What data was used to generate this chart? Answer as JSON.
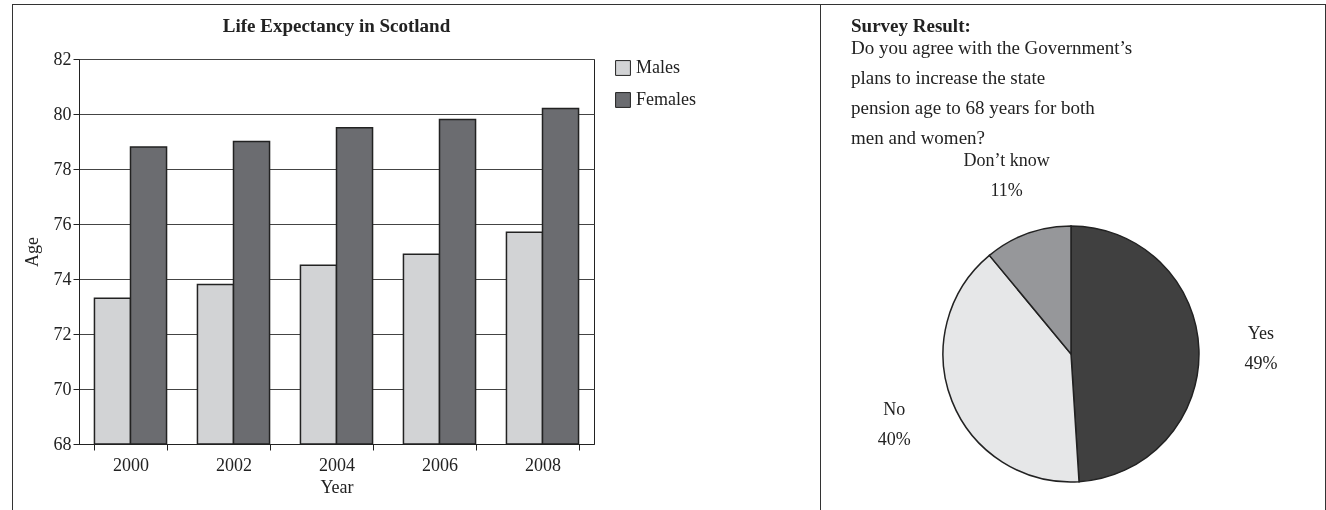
{
  "chart_data": [
    {
      "type": "bar",
      "title": "Life Expectancy in Scotland",
      "xlabel": "Year",
      "ylabel": "Age",
      "categories": [
        "2000",
        "2002",
        "2004",
        "2006",
        "2008"
      ],
      "series": [
        {
          "name": "Males",
          "color": "#d2d3d5",
          "values": [
            73.3,
            73.8,
            74.5,
            74.9,
            75.7
          ]
        },
        {
          "name": "Females",
          "color": "#6b6c70",
          "values": [
            78.8,
            79.0,
            79.5,
            79.8,
            80.2
          ]
        }
      ],
      "ylim": [
        68,
        82
      ],
      "yticks": [
        68,
        70,
        72,
        74,
        76,
        78,
        80,
        82
      ],
      "grid": "y",
      "legend": "right"
    },
    {
      "type": "pie",
      "title": "Survey Result:",
      "subtitle": "Do you agree with the Government’s plans to increase the state pension age to 68 years for both men and women?",
      "categories": [
        "Yes",
        "No",
        "Don’t know"
      ],
      "values": [
        49,
        40,
        11
      ],
      "colors": [
        "#404040",
        "#e6e7e8",
        "#96979a"
      ],
      "value_labels": [
        "49%",
        "40%",
        "11%"
      ]
    }
  ]
}
